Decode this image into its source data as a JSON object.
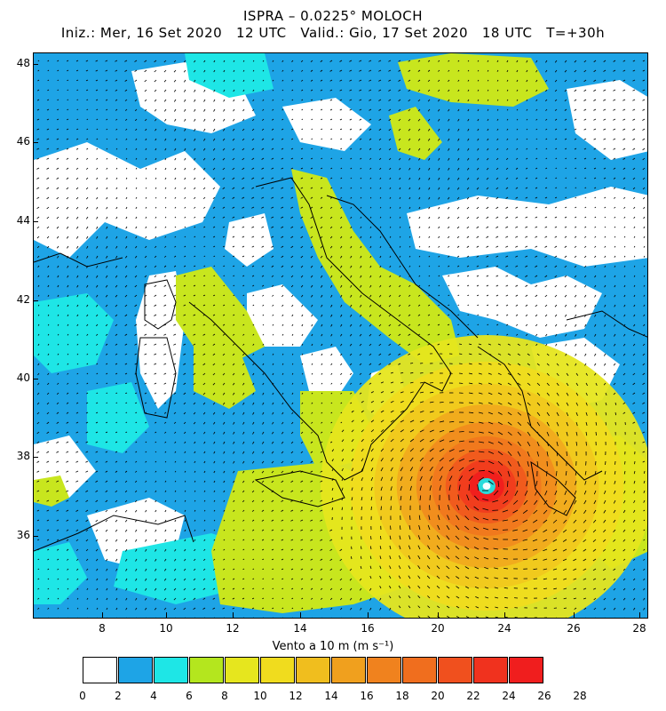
{
  "title": {
    "line1": "ISPRA – 0.0225° MOLOCH",
    "line2": "Iniz.: Mer, 16 Set 2020   12 UTC   Valid.: Gio, 17 Set 2020   18 UTC   T=+30h"
  },
  "map": {
    "lon_range": [
      6,
      28
    ],
    "lat_range": [
      34,
      48.5
    ],
    "x_ticks": [
      "8",
      "10",
      "12",
      "14",
      "16",
      "20",
      "24",
      "26",
      "28"
    ],
    "x_tick_values": [
      8,
      10,
      12,
      14,
      16,
      20,
      24,
      26,
      28
    ],
    "y_ticks": [
      "48",
      "46",
      "44",
      "42",
      "40",
      "38",
      "36"
    ],
    "y_tick_values": [
      48,
      46,
      44,
      42,
      40,
      38,
      36
    ],
    "cyclone_center": {
      "lon": 21.8,
      "lat": 37.3
    }
  },
  "legend": {
    "title": "Vento a 10 m (m s⁻¹)",
    "labels": [
      "0",
      "2",
      "4",
      "6",
      "8",
      "10",
      "12",
      "14",
      "16",
      "18",
      "20",
      "22",
      "24",
      "26",
      "28"
    ],
    "colors": [
      "#ffffff",
      "#1ea4e6",
      "#1ee6e6",
      "#b4e61e",
      "#e6e61e",
      "#f0dc1e",
      "#f0be1e",
      "#f0a01e",
      "#f0821e",
      "#f06e1e",
      "#f0501e",
      "#f0321e",
      "#f01e1e"
    ]
  }
}
